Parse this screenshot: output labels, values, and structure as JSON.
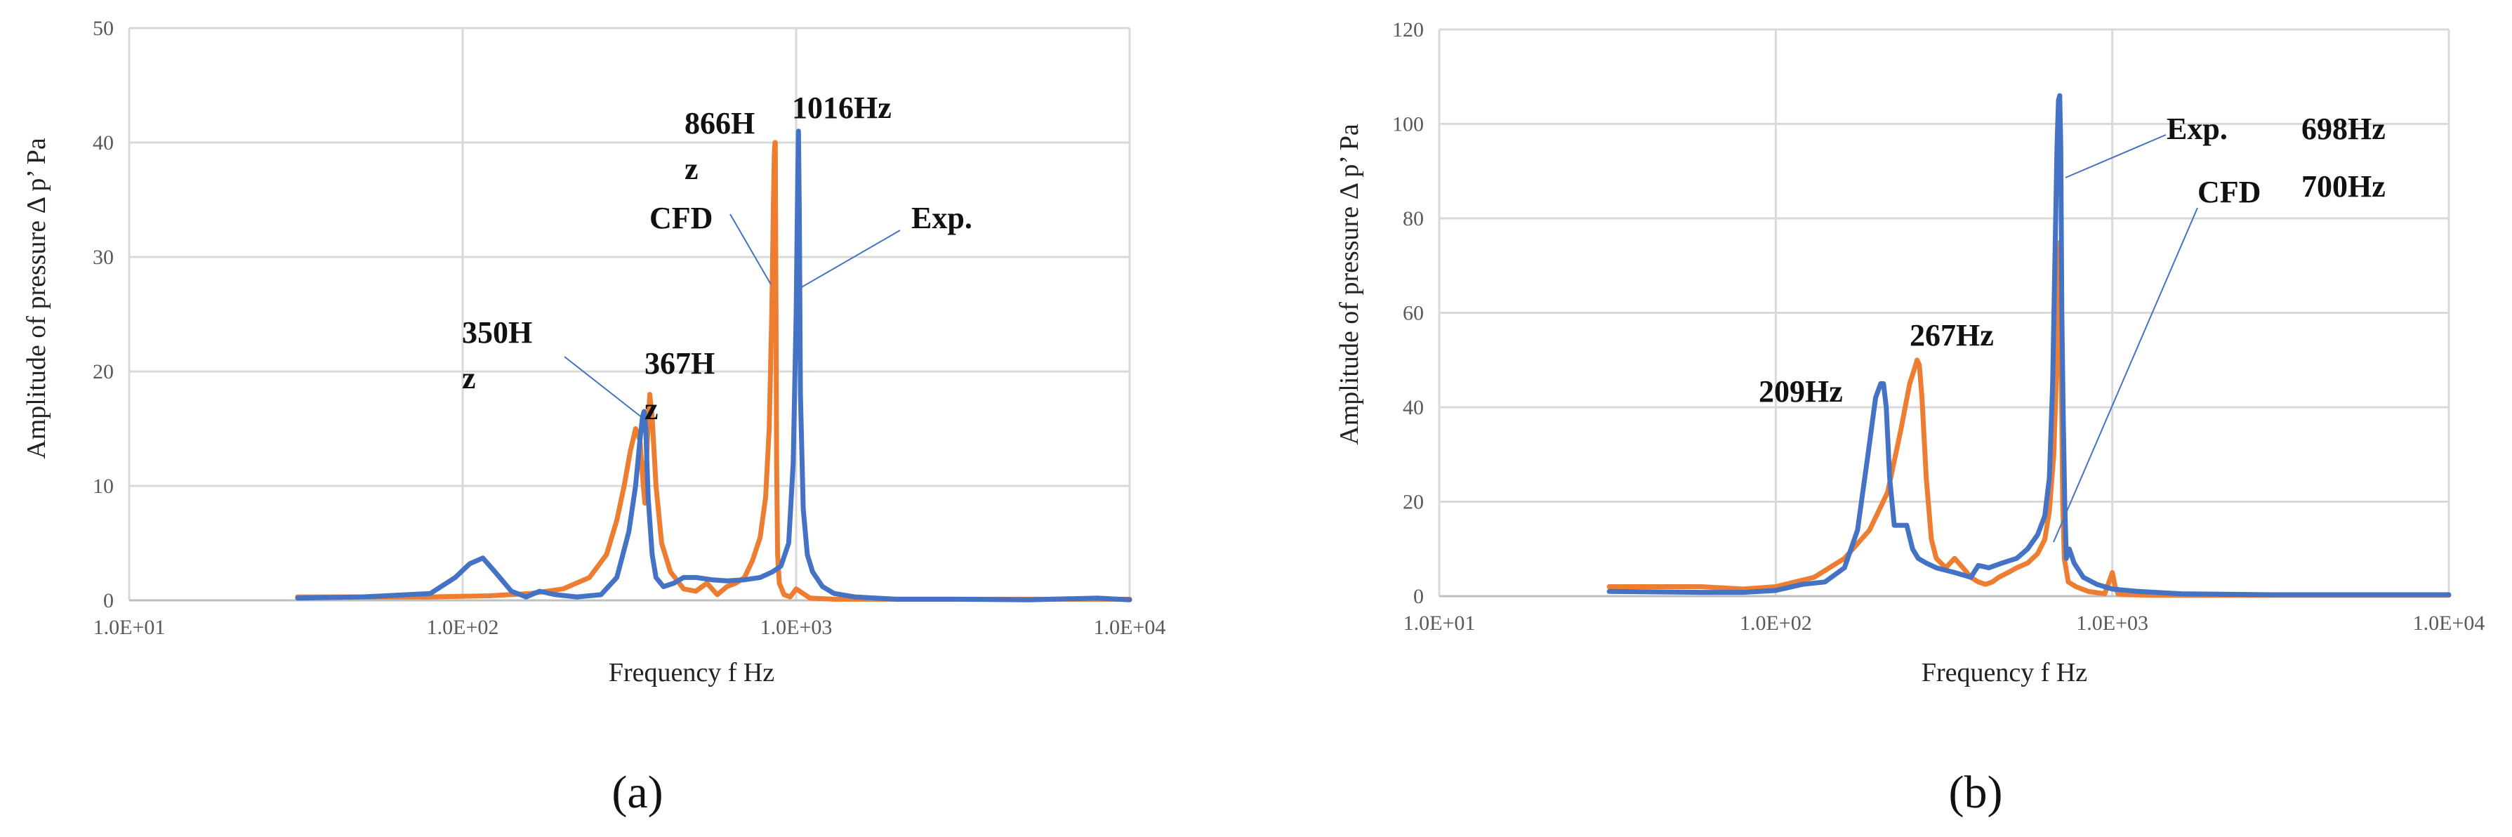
{
  "chart_data": [
    {
      "panel": "(a)",
      "type": "line",
      "x_scale": "log",
      "xlim": [
        10,
        10000
      ],
      "ylim": [
        0,
        50
      ],
      "x_ticks": [
        "1.0E+01",
        "1.0E+02",
        "1.0E+03",
        "1.0E+04"
      ],
      "y_ticks": [
        "0",
        "10",
        "20",
        "30",
        "40",
        "50"
      ],
      "xlabel": "Frequency   f   Hz",
      "ylabel": "Amplitude of pressure Δ p’  Pa",
      "series": [
        {
          "name": "CFD",
          "color": "#ed7d31",
          "x": [
            32,
            50,
            80,
            120,
            160,
            200,
            240,
            270,
            290,
            305,
            318,
            330,
            340,
            348,
            352,
            358,
            364,
            370,
            380,
            395,
            420,
            460,
            500,
            540,
            580,
            620,
            660,
            700,
            740,
            780,
            810,
            830,
            845,
            855,
            860,
            864,
            866,
            869,
            874,
            880,
            890,
            920,
            960,
            1000,
            1100,
            1300,
            1600,
            2000,
            3000,
            5000,
            10000
          ],
          "y": [
            0.3,
            0.3,
            0.3,
            0.4,
            0.6,
            1.0,
            2.0,
            4.0,
            7.0,
            10.0,
            13.0,
            15.0,
            14.0,
            10.0,
            8.5,
            14.0,
            18.0,
            16.0,
            10.0,
            5.0,
            2.5,
            1.0,
            0.8,
            1.5,
            0.5,
            1.2,
            1.5,
            2.0,
            3.5,
            5.5,
            9.0,
            15.0,
            25.0,
            35.0,
            39.0,
            40.0,
            40.0,
            30.0,
            12.0,
            4.0,
            1.5,
            0.5,
            0.3,
            1.0,
            0.2,
            0.1,
            0.1,
            0.1,
            0.1,
            0.1,
            0.1
          ]
        },
        {
          "name": "Exp.",
          "color": "#4472c4",
          "x": [
            32,
            50,
            80,
            95,
            105,
            115,
            125,
            140,
            155,
            170,
            190,
            220,
            260,
            290,
            315,
            330,
            340,
            346,
            350,
            354,
            360,
            370,
            380,
            400,
            430,
            460,
            500,
            560,
            620,
            700,
            780,
            850,
            900,
            950,
            980,
            1000,
            1010,
            1016,
            1022,
            1030,
            1050,
            1080,
            1120,
            1200,
            1300,
            1500,
            2000,
            3000,
            5000,
            8000,
            10000
          ],
          "y": [
            0.2,
            0.3,
            0.6,
            2.0,
            3.2,
            3.7,
            2.5,
            0.8,
            0.3,
            0.8,
            0.5,
            0.3,
            0.5,
            2.0,
            6.0,
            10.0,
            14.0,
            16.0,
            16.5,
            15.0,
            9.0,
            4.0,
            2.0,
            1.2,
            1.5,
            2.0,
            2.0,
            1.8,
            1.7,
            1.8,
            2.0,
            2.5,
            3.0,
            5.0,
            12.0,
            25.0,
            36.0,
            41.0,
            34.0,
            18.0,
            8.0,
            4.0,
            2.5,
            1.2,
            0.6,
            0.3,
            0.1,
            0.1,
            0.05,
            0.2,
            0.05
          ]
        }
      ],
      "annotations": [
        "866H",
        "z",
        "1016Hz",
        "CFD",
        "Exp.",
        "350H",
        "z",
        "367H",
        "z"
      ]
    },
    {
      "panel": "(b)",
      "type": "line",
      "x_scale": "log",
      "xlim": [
        10,
        10000
      ],
      "ylim": [
        0,
        120
      ],
      "x_ticks": [
        "1.0E+01",
        "1.0E+02",
        "1.0E+03",
        "1.0E+04"
      ],
      "y_ticks": [
        "0",
        "20",
        "40",
        "60",
        "80",
        "100",
        "120"
      ],
      "xlabel": "Frequency   f   Hz",
      "ylabel": "Amplitude of pressure Δ p’  Pa",
      "series": [
        {
          "name": "CFD",
          "color": "#ed7d31",
          "x": [
            32,
            60,
            80,
            100,
            130,
            160,
            190,
            215,
            235,
            250,
            258,
            263,
            267,
            272,
            280,
            290,
            300,
            320,
            340,
            360,
            380,
            400,
            420,
            440,
            460,
            490,
            520,
            560,
            600,
            630,
            650,
            670,
            685,
            695,
            700,
            705,
            712,
            720,
            740,
            780,
            850,
            950,
            1000,
            1020,
            1040,
            1100,
            1300,
            2000,
            3000,
            10000
          ],
          "y": [
            2.0,
            2.0,
            1.5,
            2.0,
            4.0,
            8.0,
            14.0,
            22.0,
            35.0,
            45.0,
            48.0,
            50.0,
            49.0,
            42.0,
            25.0,
            12.0,
            8.0,
            6.0,
            8.0,
            6.0,
            4.0,
            3.0,
            2.5,
            3.0,
            4.0,
            5.0,
            6.0,
            7.0,
            9.0,
            12.0,
            18.0,
            30.0,
            50.0,
            70.0,
            75.0,
            50.0,
            20.0,
            8.0,
            3.0,
            2.0,
            1.0,
            0.5,
            5.0,
            2.0,
            0.5,
            0.3,
            0.2,
            0.2,
            0.2,
            0.2
          ]
        },
        {
          "name": "Exp.",
          "color": "#4472c4",
          "x": [
            32,
            60,
            80,
            100,
            120,
            140,
            160,
            175,
            188,
            198,
            205,
            209,
            213,
            218,
            225,
            235,
            245,
            255,
            265,
            280,
            300,
            340,
            380,
            400,
            430,
            470,
            520,
            560,
            600,
            630,
            650,
            665,
            675,
            685,
            692,
            698,
            703,
            708,
            715,
            722,
            730,
            745,
            770,
            820,
            900,
            1000,
            1200,
            1600,
            3000,
            10000
          ],
          "y": [
            1.0,
            0.8,
            0.8,
            1.2,
            2.5,
            3.0,
            6.0,
            14.0,
            30.0,
            42.0,
            45.0,
            45.0,
            40.0,
            25.0,
            15.0,
            15.0,
            15.0,
            10.0,
            8.0,
            7.0,
            6.0,
            5.0,
            4.0,
            6.5,
            6.0,
            7.0,
            8.0,
            10.0,
            13.0,
            17.0,
            25.0,
            45.0,
            70.0,
            95.0,
            105.0,
            106.0,
            95.0,
            60.0,
            38.0,
            20.0,
            8.0,
            10.0,
            7.0,
            4.0,
            2.5,
            1.5,
            1.0,
            0.5,
            0.3,
            0.3
          ]
        }
      ],
      "annotations": [
        "Exp.",
        "698Hz",
        "CFD",
        "700Hz",
        "267Hz",
        "209Hz"
      ]
    }
  ],
  "colors": {
    "cfd": "#ed7d31",
    "exp": "#4472c4"
  }
}
